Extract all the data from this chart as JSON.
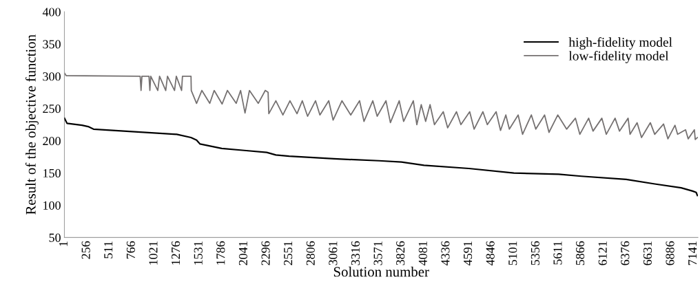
{
  "chart_data": {
    "type": "line",
    "xlabel": "Solution number",
    "ylabel": "Result of the objective function",
    "xlim": [
      0,
      7190
    ],
    "ylim": [
      50,
      400
    ],
    "xticks": [
      1,
      256,
      511,
      766,
      1021,
      1276,
      1531,
      1786,
      2041,
      2296,
      2551,
      2806,
      3061,
      3316,
      3571,
      3826,
      4081,
      4336,
      4591,
      4846,
      5101,
      5356,
      5611,
      5866,
      6121,
      6376,
      6631,
      6886,
      7141
    ],
    "yticks": [
      50,
      100,
      150,
      200,
      250,
      300,
      350,
      400
    ],
    "grid": false,
    "legend": "top right",
    "marker": "none",
    "line_style": "solid",
    "series": [
      {
        "name": "high-fidelity model",
        "color": "#000000",
        "x": [
          1,
          30,
          200,
          270,
          330,
          800,
          1276,
          1437,
          1500,
          1540,
          1786,
          2041,
          2296,
          2400,
          2551,
          3061,
          3571,
          3826,
          4081,
          4591,
          5101,
          5611,
          5866,
          6376,
          6700,
          7000,
          7130,
          7170,
          7185
        ],
        "values": [
          235,
          227,
          224,
          222,
          218,
          214,
          210,
          205,
          201,
          195,
          188,
          185,
          182,
          178,
          176,
          172,
          169,
          167,
          162,
          157,
          150,
          148,
          145,
          140,
          133,
          127,
          122,
          120,
          115
        ]
      },
      {
        "name": "low-fidelity model",
        "color": "#757171",
        "x": [
          1,
          20,
          860,
          870,
          880,
          960,
          970,
          980,
          1060,
          1080,
          1150,
          1170,
          1250,
          1270,
          1330,
          1340,
          1437,
          1440,
          1500,
          1560,
          1650,
          1700,
          1790,
          1850,
          1950,
          2000,
          2050,
          2100,
          2200,
          2280,
          2312,
          2320,
          2400,
          2480,
          2560,
          2640,
          2700,
          2760,
          2850,
          2900,
          3000,
          3050,
          3150,
          3250,
          3350,
          3400,
          3500,
          3550,
          3650,
          3700,
          3800,
          3850,
          3960,
          4000,
          4050,
          4100,
          4150,
          4200,
          4300,
          4350,
          4450,
          4500,
          4600,
          4650,
          4750,
          4800,
          4900,
          4950,
          5010,
          5050,
          5150,
          5200,
          5300,
          5350,
          5450,
          5500,
          5600,
          5700,
          5800,
          5850,
          5950,
          6000,
          6100,
          6150,
          6250,
          6300,
          6398,
          6420,
          6500,
          6550,
          6650,
          6700,
          6800,
          6850,
          6930,
          6960,
          7050,
          7080,
          7150,
          7160,
          7185
        ],
        "values": [
          305,
          301,
          300,
          278,
          300,
          300,
          278,
          300,
          278,
          300,
          278,
          300,
          278,
          300,
          278,
          300,
          300,
          278,
          258,
          278,
          258,
          278,
          257,
          278,
          258,
          278,
          243,
          278,
          258,
          278,
          275,
          242,
          262,
          240,
          262,
          242,
          262,
          238,
          262,
          240,
          262,
          232,
          262,
          240,
          262,
          230,
          262,
          238,
          262,
          228,
          262,
          230,
          262,
          225,
          256,
          230,
          256,
          225,
          245,
          220,
          245,
          225,
          245,
          218,
          245,
          225,
          245,
          216,
          240,
          218,
          240,
          210,
          240,
          218,
          240,
          213,
          240,
          218,
          235,
          210,
          235,
          215,
          235,
          210,
          235,
          215,
          235,
          210,
          228,
          205,
          228,
          210,
          226,
          203,
          224,
          210,
          217,
          203,
          217,
          202,
          205
        ]
      }
    ]
  }
}
